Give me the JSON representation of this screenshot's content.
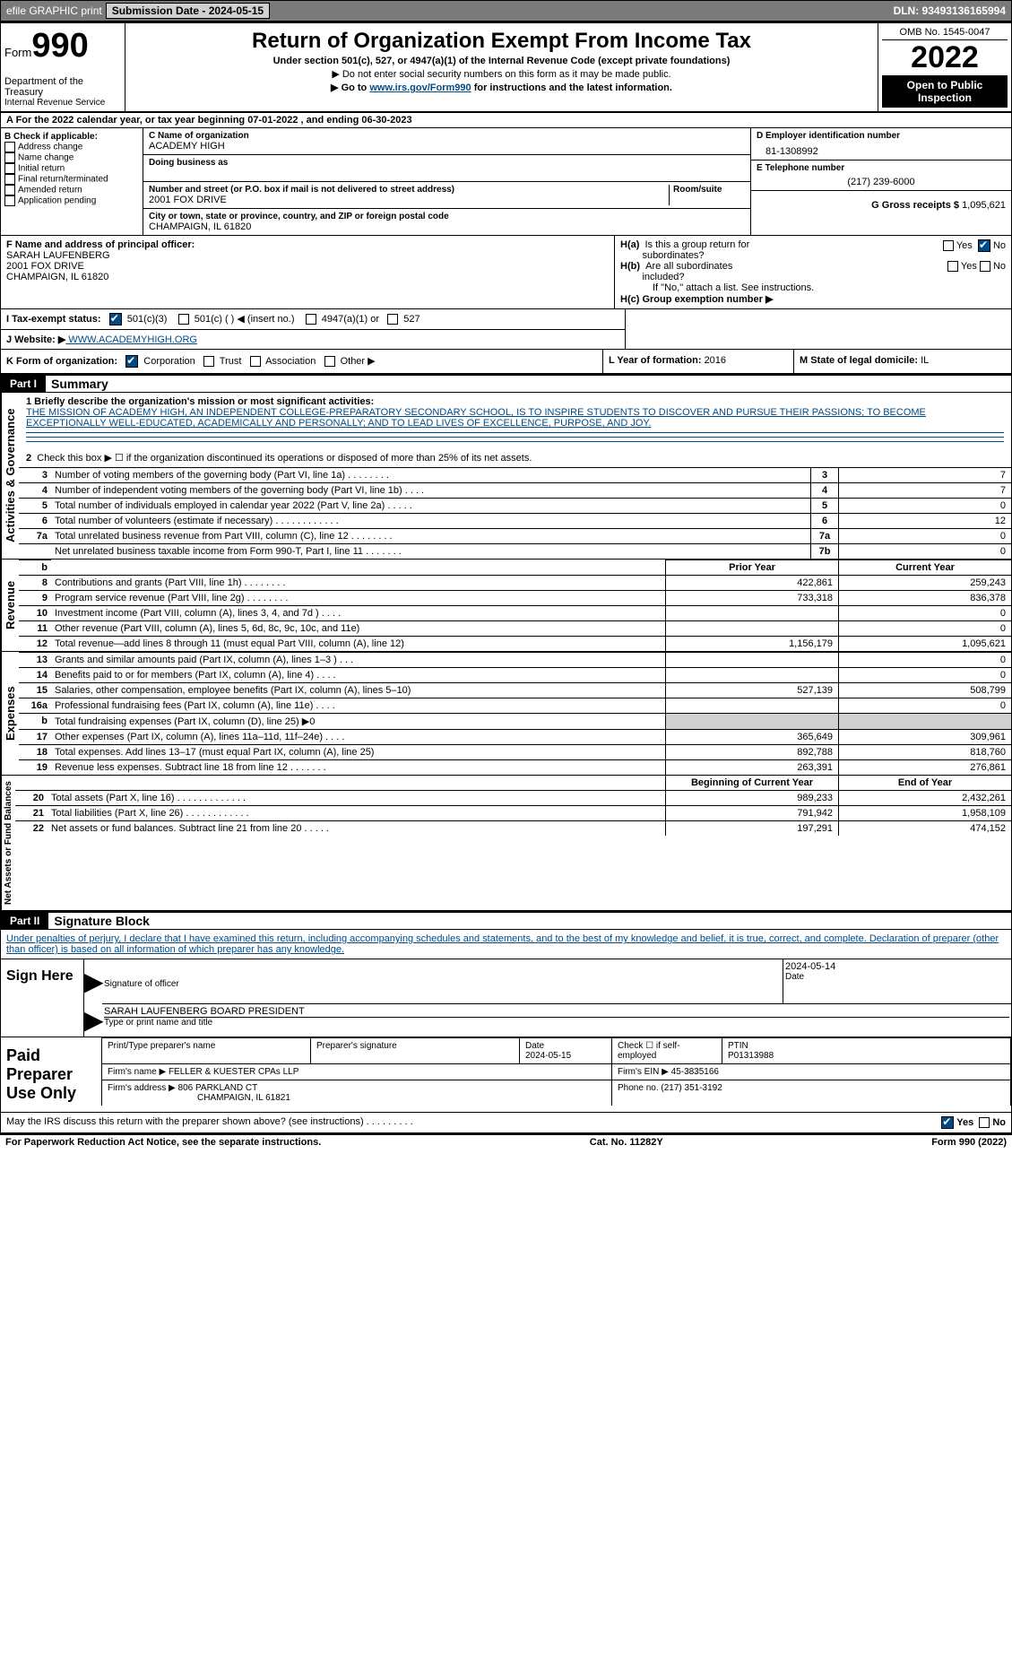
{
  "topbar": {
    "efile": "efile GRAPHIC print",
    "submission_label": "Submission Date - 2024-05-15",
    "dln_label": "DLN: 93493136165994"
  },
  "header": {
    "form_word": "Form",
    "form_number": "990",
    "dept": "Department of the Treasury",
    "irs": "Internal Revenue Service",
    "title": "Return of Organization Exempt From Income Tax",
    "subtitle": "Under section 501(c), 527, or 4947(a)(1) of the Internal Revenue Code (except private foundations)",
    "note1": "▶ Do not enter social security numbers on this form as it may be made public.",
    "note2_pre": "▶ Go to ",
    "note2_link": "www.irs.gov/Form990",
    "note2_post": " for instructions and the latest information.",
    "omb": "OMB No. 1545-0047",
    "year": "2022",
    "inspect": "Open to Public Inspection"
  },
  "line_a": "A For the 2022 calendar year, or tax year beginning 07-01-2022    , and ending 06-30-2023",
  "box_b": {
    "label": "B Check if applicable:",
    "opts": [
      "Address change",
      "Name change",
      "Initial return",
      "Final return/terminated",
      "Amended return",
      "Application pending"
    ]
  },
  "box_c": {
    "name_label": "C Name of organization",
    "name": "ACADEMY HIGH",
    "dba_label": "Doing business as",
    "street_label": "Number and street (or P.O. box if mail is not delivered to street address)",
    "room_label": "Room/suite",
    "street": "2001 FOX DRIVE",
    "city_label": "City or town, state or province, country, and ZIP or foreign postal code",
    "city": "CHAMPAIGN, IL  61820"
  },
  "box_d": {
    "label": "D Employer identification number",
    "val": "81-1308992"
  },
  "box_e": {
    "label": "E Telephone number",
    "val": "(217) 239-6000"
  },
  "box_g": {
    "label": "G Gross receipts $",
    "val": "1,095,621"
  },
  "box_f": {
    "label": "F  Name and address of principal officer:",
    "name": "SARAH LAUFENBERG",
    "street": "2001 FOX DRIVE",
    "city": "CHAMPAIGN, IL  61820"
  },
  "box_h": {
    "a_label": "H(a)  Is this a group return for subordinates?",
    "b_label": "H(b)  Are all subordinates included?",
    "b_note": "If \"No,\" attach a list. See instructions.",
    "c_label": "H(c)  Group exemption number ▶",
    "yes": "Yes",
    "no": "No"
  },
  "box_i": {
    "label": "I     Tax-exempt status:",
    "o1": "501(c)(3)",
    "o2": "501(c) (  ) ◀ (insert no.)",
    "o3": "4947(a)(1) or",
    "o4": "527"
  },
  "box_j": {
    "label": "J    Website: ▶",
    "val": " WWW.ACADEMYHIGH.ORG"
  },
  "box_k": {
    "label": "K Form of organization:",
    "o1": "Corporation",
    "o2": "Trust",
    "o3": "Association",
    "o4": "Other ▶"
  },
  "box_l": {
    "label": "L Year of formation: ",
    "val": "2016"
  },
  "box_m": {
    "label": "M State of legal domicile: ",
    "val": "IL"
  },
  "part1": {
    "hdr": "Part I",
    "title": "Summary"
  },
  "summary": {
    "l1_label": "1  Briefly describe the organization's mission or most significant activities:",
    "mission": "THE MISSION OF ACADEMY HIGH, AN INDEPENDENT COLLEGE-PREPARATORY SECONDARY SCHOOL, IS TO INSPIRE STUDENTS TO DISCOVER AND PURSUE THEIR PASSIONS; TO BECOME EXCEPTIONALLY WELL-EDUCATED, ACADEMICALLY AND PERSONALLY; AND TO LEAD LIVES OF EXCELLENCE, PURPOSE, AND JOY.",
    "l2": "Check this box ▶ ☐  if the organization discontinued its operations or disposed of more than 25% of its net assets.",
    "rows_a": [
      {
        "n": "3",
        "t": "Number of voting members of the governing body (Part VI, line 1a)   .    .    .    .    .    .    .    .",
        "box": "3",
        "v": "7"
      },
      {
        "n": "4",
        "t": "Number of independent voting members of the governing body (Part VI, line 1b)   .    .    .    .",
        "box": "4",
        "v": "7"
      },
      {
        "n": "5",
        "t": "Total number of individuals employed in calendar year 2022 (Part V, line 2a)   .    .    .    .    .",
        "box": "5",
        "v": "0"
      },
      {
        "n": "6",
        "t": "Total number of volunteers (estimate if necessary)    .    .    .    .    .    .    .    .    .    .    .    .",
        "box": "6",
        "v": "12"
      },
      {
        "n": "7a",
        "t": "Total unrelated business revenue from Part VIII, column (C), line 12    .    .    .    .    .    .    .    .",
        "box": "7a",
        "v": "0"
      },
      {
        "n": "",
        "t": "Net unrelated business taxable income from Form 990-T, Part I, line 11    .    .    .    .    .    .    .",
        "box": "7b",
        "v": "0"
      }
    ],
    "col_prior": "Prior Year",
    "col_current": "Current Year",
    "rev_rows": [
      {
        "n": "8",
        "t": "Contributions and grants (Part VIII, line 1h)    .    .    .    .    .    .    .    .",
        "p": "422,861",
        "c": "259,243"
      },
      {
        "n": "9",
        "t": "Program service revenue (Part VIII, line 2g)    .    .    .    .    .    .    .    .",
        "p": "733,318",
        "c": "836,378"
      },
      {
        "n": "10",
        "t": "Investment income (Part VIII, column (A), lines 3, 4, and 7d )   .    .    .    .",
        "p": "",
        "c": "0"
      },
      {
        "n": "11",
        "t": "Other revenue (Part VIII, column (A), lines 5, 6d, 8c, 9c, 10c, and 11e)",
        "p": "",
        "c": "0"
      },
      {
        "n": "12",
        "t": "Total revenue—add lines 8 through 11 (must equal Part VIII, column (A), line 12)",
        "p": "1,156,179",
        "c": "1,095,621"
      }
    ],
    "exp_rows": [
      {
        "n": "13",
        "t": "Grants and similar amounts paid (Part IX, column (A), lines 1–3 )   .    .    .",
        "p": "",
        "c": "0"
      },
      {
        "n": "14",
        "t": "Benefits paid to or for members (Part IX, column (A), line 4)   .    .    .    .",
        "p": "",
        "c": "0"
      },
      {
        "n": "15",
        "t": "Salaries, other compensation, employee benefits (Part IX, column (A), lines 5–10)",
        "p": "527,139",
        "c": "508,799"
      },
      {
        "n": "16a",
        "t": "Professional fundraising fees (Part IX, column (A), line 11e)   .    .    .    .",
        "p": "",
        "c": "0"
      },
      {
        "n": "b",
        "t": "Total fundraising expenses (Part IX, column (D), line 25) ▶0",
        "p": "GREY",
        "c": "GREY"
      },
      {
        "n": "17",
        "t": "Other expenses (Part IX, column (A), lines 11a–11d, 11f–24e)    .    .    .    .",
        "p": "365,649",
        "c": "309,961"
      },
      {
        "n": "18",
        "t": "Total expenses. Add lines 13–17 (must equal Part IX, column (A), line 25)",
        "p": "892,788",
        "c": "818,760"
      },
      {
        "n": "19",
        "t": "Revenue less expenses. Subtract line 18 from line 12    .    .    .    .    .    .    .",
        "p": "263,391",
        "c": "276,861"
      }
    ],
    "col_begin": "Beginning of Current Year",
    "col_end": "End of Year",
    "net_rows": [
      {
        "n": "20",
        "t": "Total assets (Part X, line 16)   .    .    .    .    .    .    .    .    .    .    .    .    .",
        "p": "989,233",
        "c": "2,432,261"
      },
      {
        "n": "21",
        "t": "Total liabilities (Part X, line 26)    .    .    .    .    .    .    .    .    .    .    .    .",
        "p": "791,942",
        "c": "1,958,109"
      },
      {
        "n": "22",
        "t": "Net assets or fund balances. Subtract line 21 from line 20    .    .    .    .    .",
        "p": "197,291",
        "c": "474,152"
      }
    ]
  },
  "vtabs": {
    "gov": "Activities & Governance",
    "rev": "Revenue",
    "exp": "Expenses",
    "net": "Net Assets or Fund Balances"
  },
  "part2": {
    "hdr": "Part II",
    "title": "Signature Block"
  },
  "sig": {
    "penalty": "Under penalties of perjury, I declare that I have examined this return, including accompanying schedules and statements, and to the best of my knowledge and belief, it is true, correct, and complete. Declaration of preparer (other than officer) is based on all information of which preparer has any knowledge.",
    "sign_here": "Sign Here",
    "sig_officer": "Signature of officer",
    "date": "Date",
    "date_val": "2024-05-14",
    "name_title": "SARAH LAUFENBERG  BOARD PRESIDENT",
    "type_label": "Type or print name and title"
  },
  "prep": {
    "label": "Paid Preparer Use Only",
    "h1": "Print/Type preparer's name",
    "h2": "Preparer's signature",
    "h3": "Date",
    "date": "2024-05-15",
    "h4": "Check ☐ if self-employed",
    "h5": "PTIN",
    "ptin": "P01313988",
    "firm_label": "Firm's name    ▶",
    "firm": "FELLER & KUESTER CPAs LLP",
    "ein_label": "Firm's EIN ▶",
    "ein": "45-3835166",
    "addr_label": "Firm's address ▶",
    "addr1": "806 PARKLAND CT",
    "addr2": "CHAMPAIGN, IL  61821",
    "phone_label": "Phone no.",
    "phone": "(217) 351-3192"
  },
  "discuss": {
    "text": "May the IRS discuss this return with the preparer shown above? (see instructions)   .    .    .    .    .    .    .    .    .",
    "yes": "Yes",
    "no": "No"
  },
  "footer": {
    "left": "For Paperwork Reduction Act Notice, see the separate instructions.",
    "mid": "Cat. No. 11282Y",
    "right": "Form 990 (2022)"
  },
  "colors": {
    "link": "#004b87",
    "grey": "#d0d0d0",
    "topbar": "#7a7a7a"
  }
}
